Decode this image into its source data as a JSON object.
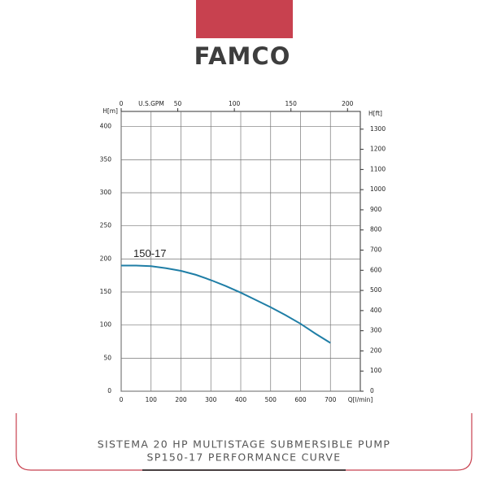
{
  "logo": "FAMCO",
  "chart_data": {
    "type": "line",
    "x_label": "Q[l/min]",
    "y_label": "H[m]",
    "y2_label": "H[ft]",
    "x2_label": "U.S.GPM",
    "x": [
      0,
      50,
      100,
      150,
      200,
      250,
      300,
      350,
      400,
      450,
      500,
      550,
      600,
      650,
      700
    ],
    "series": [
      {
        "name": "150-17",
        "color": "#1f7ea6",
        "values": [
          190,
          190,
          189,
          186,
          182,
          176,
          168,
          159,
          149,
          138,
          127,
          115,
          102,
          87,
          73
        ]
      }
    ],
    "xlim": [
      0,
      800
    ],
    "xticks": [
      0,
      100,
      200,
      300,
      400,
      500,
      600,
      700
    ],
    "x2lim": [
      0,
      211.3
    ],
    "x2ticks": [
      0,
      50,
      100,
      150,
      200
    ],
    "ylim": [
      0,
      423
    ],
    "yticks": [
      0,
      50,
      100,
      150,
      200,
      250,
      300,
      350,
      400
    ],
    "y2lim": [
      0,
      1388
    ],
    "y2ticks": [
      0,
      100,
      200,
      300,
      400,
      500,
      600,
      700,
      800,
      900,
      1000,
      1100,
      1200,
      1300
    ],
    "grid": true
  },
  "caption": [
    "SISTEMA 20 HP MULTISTAGE SUBMERSIBLE PUMP",
    "SP150-17 PERFORMANCE CURVE"
  ]
}
